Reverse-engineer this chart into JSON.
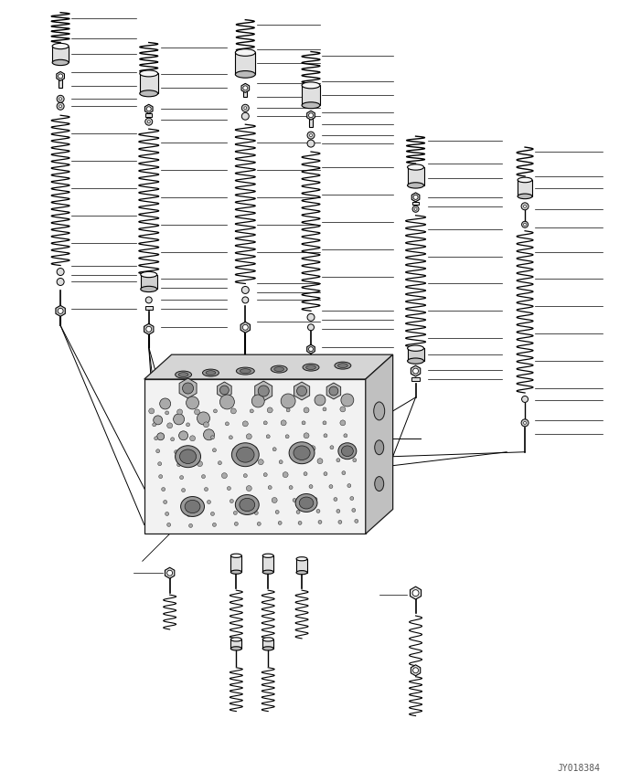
{
  "bg_color": "#ffffff",
  "line_color": "#1a1a1a",
  "watermark": "JY018384",
  "fig_width": 6.89,
  "fig_height": 8.56,
  "dpi": 100,
  "columns": {
    "c1x": 65,
    "c2x": 162,
    "c3x": 268,
    "c4x": 340,
    "c5x": 455,
    "c6x": 575
  }
}
